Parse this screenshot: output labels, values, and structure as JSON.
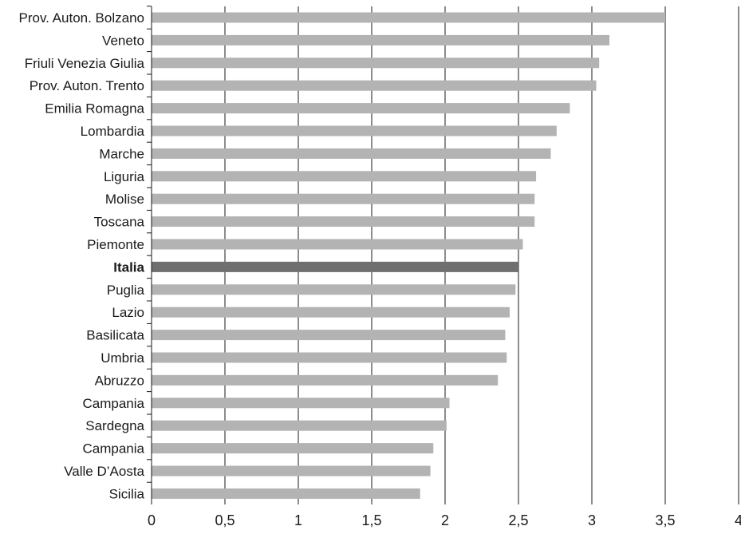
{
  "chart_data": {
    "type": "bar",
    "orientation": "horizontal",
    "title": "",
    "xlabel": "",
    "ylabel": "",
    "xlim": [
      0,
      4
    ],
    "grid": true,
    "legend": "none",
    "x_ticks": [
      "0",
      "0,5",
      "1",
      "1,5",
      "2",
      "2,5",
      "3",
      "3,5",
      "4"
    ],
    "categories": [
      "Prov. Auton. Bolzano",
      "Veneto",
      "Friuli Venezia Giulia",
      "Prov. Auton. Trento",
      "Emilia Romagna",
      "Lombardia",
      "Marche",
      "Liguria",
      "Molise",
      "Toscana",
      "Piemonte",
      "Italia",
      "Puglia",
      "Lazio",
      "Basilicata",
      "Umbria",
      "Abruzzo",
      "Campania",
      "Sardegna",
      "Campania",
      "Valle D’Aosta",
      "Sicilia"
    ],
    "values": [
      3.5,
      3.12,
      3.05,
      3.03,
      2.85,
      2.76,
      2.72,
      2.62,
      2.61,
      2.61,
      2.53,
      2.5,
      2.48,
      2.44,
      2.41,
      2.42,
      2.36,
      2.03,
      2.01,
      1.92,
      1.9,
      1.83
    ],
    "highlight": "Italia",
    "colors": {
      "bar": "#b3b3b3",
      "highlight_bar": "#6f6f6f",
      "grid": "#1a1a1a",
      "text": "#1a1a1a"
    }
  }
}
